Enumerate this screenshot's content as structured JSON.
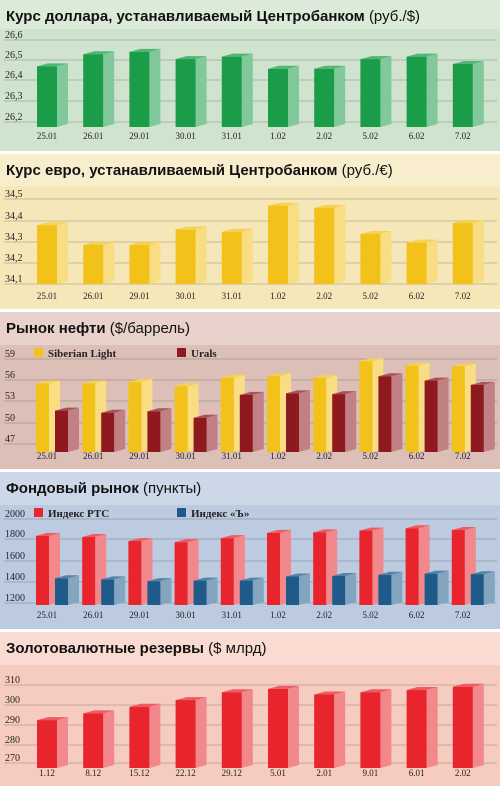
{
  "chart_data": [
    {
      "type": "bar",
      "title": "Курс доллара, устанавливаемый Центробанком",
      "unit": "(руб./$)",
      "categories": [
        "25.01",
        "26.01",
        "29.01",
        "30.01",
        "31.01",
        "1.02",
        "2.02",
        "5.02",
        "6.02",
        "7.02"
      ],
      "yticks": [
        "26,6",
        "26,5",
        "26,4",
        "26,3",
        "26,2"
      ],
      "ylim": [
        26.2,
        26.6
      ],
      "series": [
        {
          "values": [
            26.45,
            26.5,
            26.51,
            26.48,
            26.49,
            26.44,
            26.44,
            26.48,
            26.49,
            26.46
          ],
          "color": "#1a9c48"
        }
      ],
      "colors": {
        "band": "#cfe3cf",
        "header": "#dcead9"
      }
    },
    {
      "type": "bar",
      "title": "Курс евро, устанавливаемый Центробанком",
      "unit": "(руб./€)",
      "categories": [
        "25.01",
        "26.01",
        "29.01",
        "30.01",
        "31.01",
        "1.02",
        "2.02",
        "5.02",
        "6.02",
        "7.02"
      ],
      "yticks": [
        "34,5",
        "34,4",
        "34,3",
        "34,2",
        "34,1"
      ],
      "ylim": [
        34.1,
        34.5
      ],
      "series": [
        {
          "values": [
            34.37,
            34.28,
            34.28,
            34.35,
            34.34,
            34.46,
            34.45,
            34.33,
            34.29,
            34.38
          ],
          "color": "#f2c21b"
        }
      ],
      "colors": {
        "band": "#f6e7b9",
        "header": "#f8edcd"
      }
    },
    {
      "type": "bar",
      "title": "Рынок нефти",
      "unit": "($/баррель)",
      "categories": [
        "25.01",
        "26.01",
        "29.01",
        "30.01",
        "31.01",
        "1.02",
        "2.02",
        "5.02",
        "6.02",
        "7.02"
      ],
      "yticks": [
        "59",
        "56",
        "53",
        "50",
        "47"
      ],
      "ylim": [
        45,
        59
      ],
      "series": [
        {
          "name": "Siberian Light",
          "values": [
            54.6,
            54.6,
            54.8,
            54.2,
            55.4,
            55.6,
            55.4,
            57.7,
            57.1,
            57.0
          ],
          "color": "#f2c21b"
        },
        {
          "name": "Urals",
          "values": [
            50.8,
            50.5,
            50.7,
            49.8,
            53.0,
            53.2,
            53.1,
            55.6,
            55.0,
            54.4
          ],
          "color": "#8e1a1f"
        }
      ],
      "colors": {
        "band": "#dcbfb6",
        "header": "#e8d2cb"
      }
    },
    {
      "type": "bar",
      "title": "Фондовый рынок",
      "unit": "(пункты)",
      "categories": [
        "25.01",
        "26.01",
        "29.01",
        "30.01",
        "31.01",
        "1.02",
        "2.02",
        "5.02",
        "6.02",
        "7.02"
      ],
      "yticks": [
        "2000",
        "1800",
        "1600",
        "1400",
        "1200"
      ],
      "ylim": [
        1200,
        2000
      ],
      "series": [
        {
          "name": "Индекс РТС",
          "values": [
            1795,
            1785,
            1750,
            1740,
            1775,
            1820,
            1825,
            1840,
            1860,
            1845
          ],
          "color": "#e8242d"
        },
        {
          "name": "Индекс «Ъ»",
          "values": [
            1430,
            1420,
            1405,
            1410,
            1410,
            1445,
            1450,
            1460,
            1470,
            1465
          ],
          "color": "#1e5b8a"
        }
      ],
      "colors": {
        "band": "#bccbe0",
        "header": "#ccd8e8"
      }
    },
    {
      "type": "bar",
      "title": "Золотовалютные резервы",
      "unit": "($ млрд)",
      "categories": [
        "1.12",
        "8.12",
        "15.12",
        "22.12",
        "29.12",
        "5.01",
        "2.01",
        "9.01",
        "6.01",
        "2.02"
      ],
      "yticks": [
        "310",
        "300",
        "290",
        "280",
        "270"
      ],
      "ylim": [
        266,
        310
      ],
      "series": [
        {
          "values": [
            287.5,
            290.5,
            293.5,
            296.5,
            300.0,
            301.5,
            299.0,
            300.0,
            301.0,
            302.5
          ],
          "color": "#e8242d"
        }
      ],
      "colors": {
        "band": "#f7ccc0",
        "header": "#f9dbd2"
      }
    }
  ]
}
